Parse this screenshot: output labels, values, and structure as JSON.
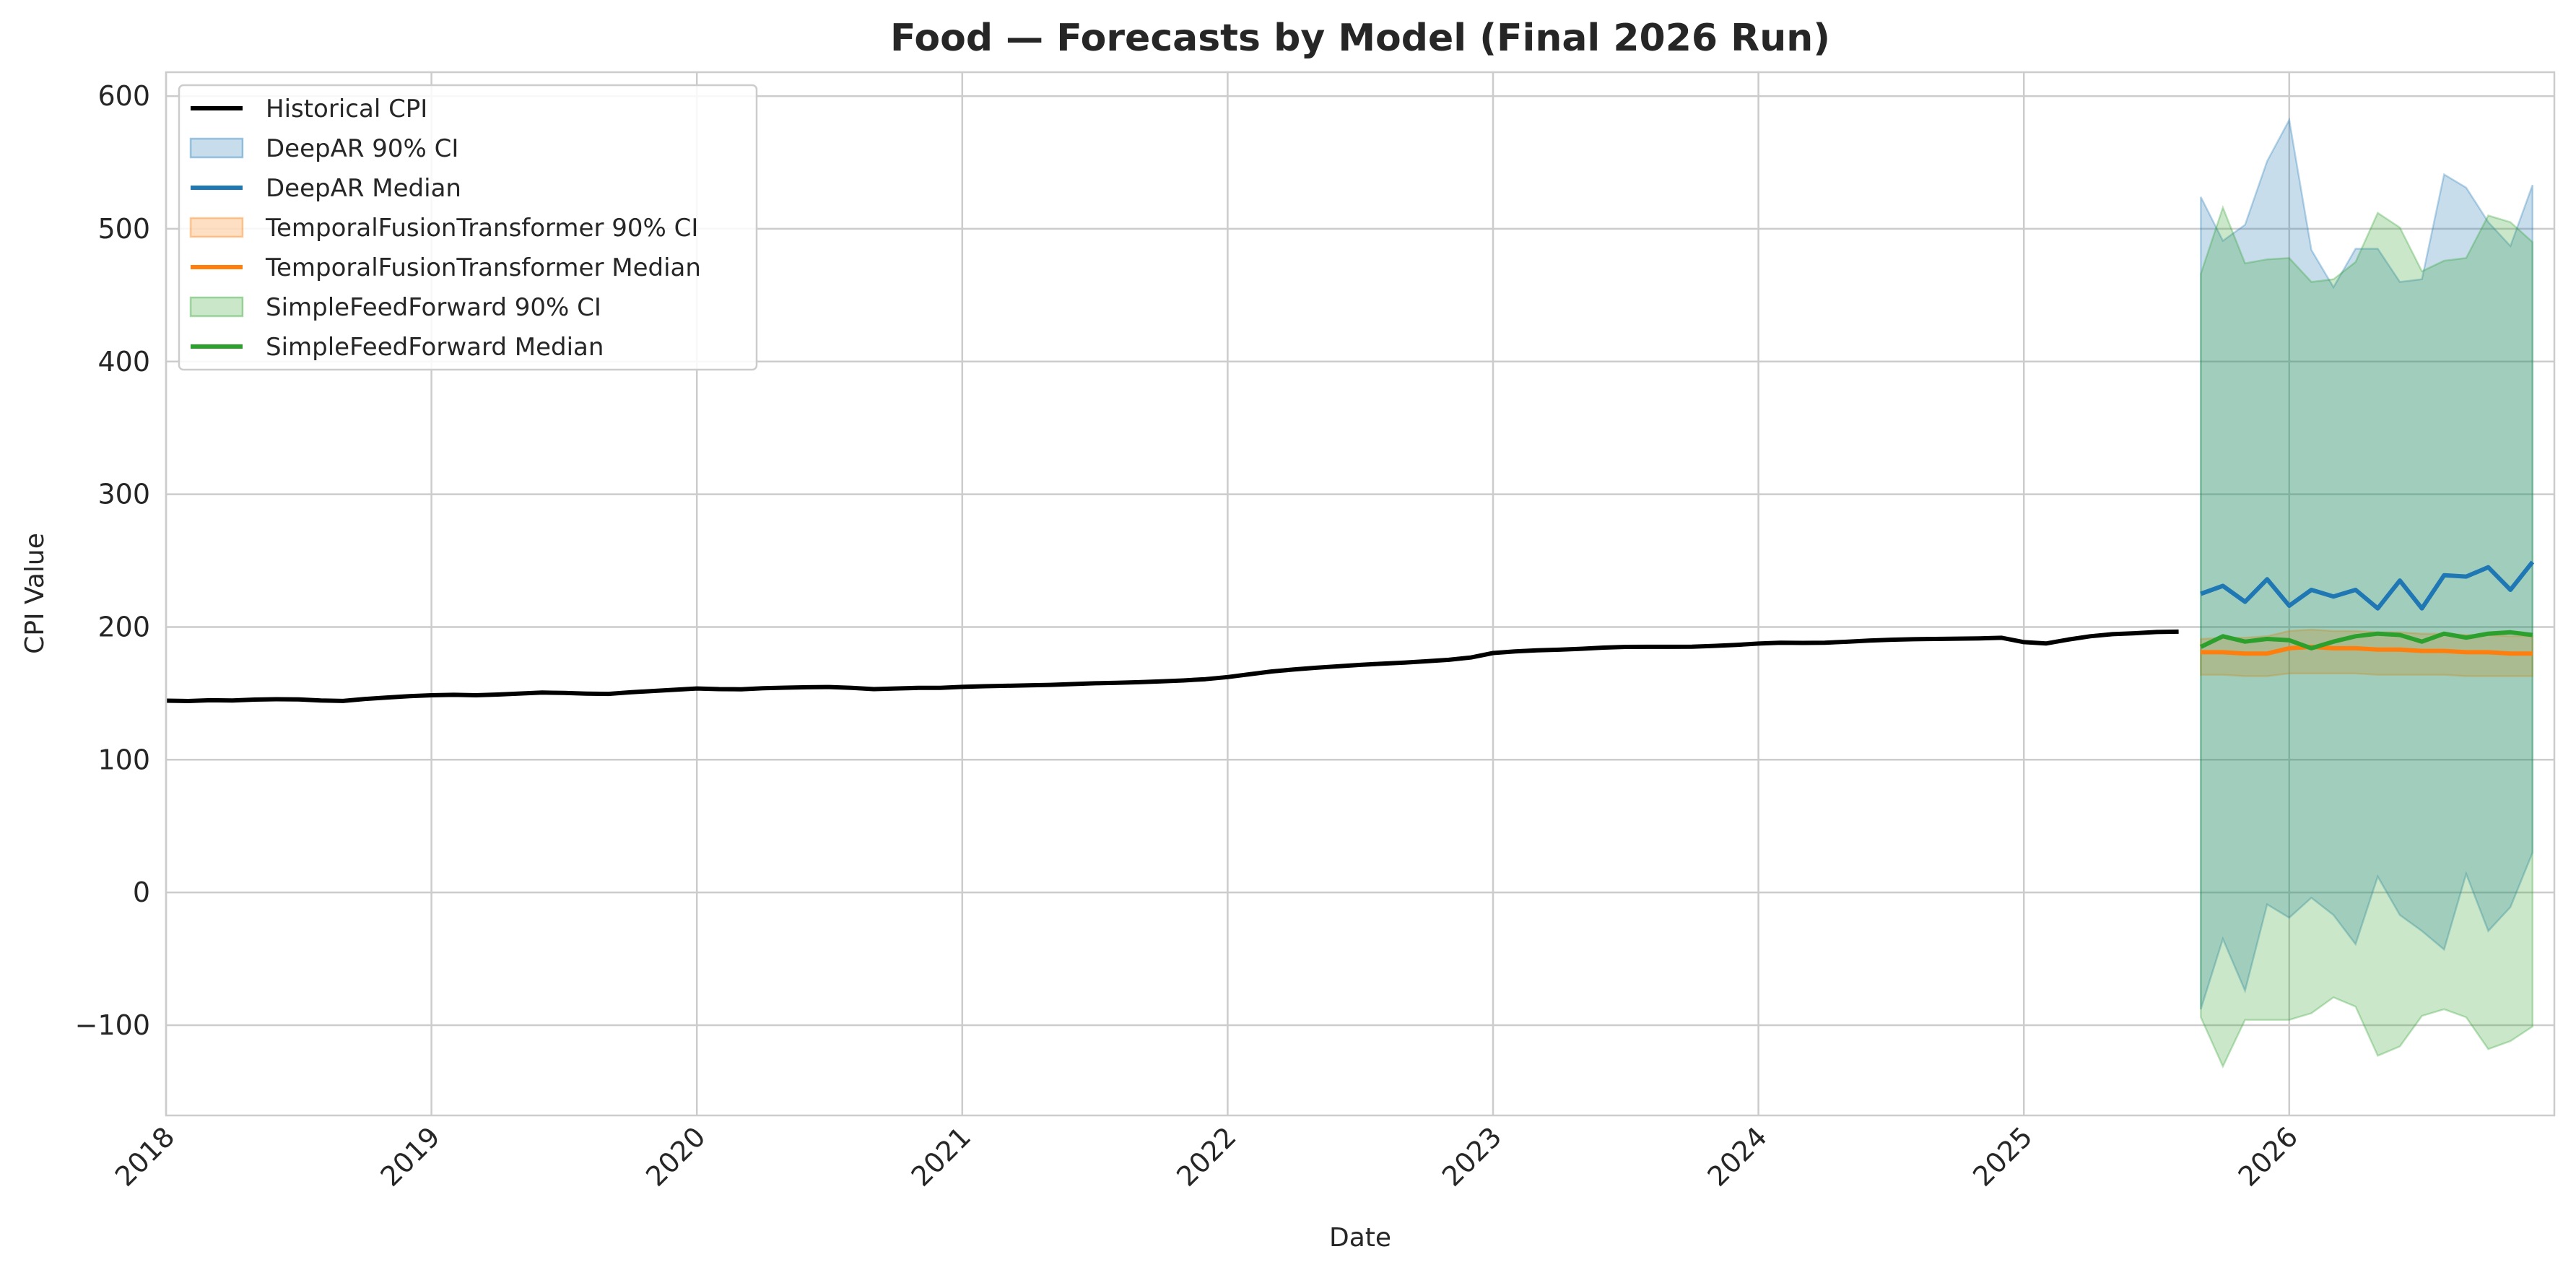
{
  "chart_data": {
    "type": "line",
    "title": "Food — Forecasts by Model (Final 2026 Run)",
    "xlabel": "Date",
    "ylabel": "CPI Value",
    "xlim": [
      "2018-01-01",
      "2026-12-31"
    ],
    "ylim": [
      -168,
      618
    ],
    "x_ticks": [
      "2018",
      "2019",
      "2020",
      "2021",
      "2022",
      "2023",
      "2024",
      "2025",
      "2026"
    ],
    "y_ticks": [
      -100,
      0,
      100,
      200,
      300,
      400,
      500,
      600
    ],
    "y_tick_labels": [
      "−100",
      "0",
      "100",
      "200",
      "300",
      "400",
      "500",
      "600"
    ],
    "grid": true,
    "legend_position": "upper-left",
    "legend": [
      {
        "label": "Historical CPI",
        "kind": "line",
        "color": "#000000"
      },
      {
        "label": "DeepAR 90% CI",
        "kind": "band",
        "color": "#1f77b4"
      },
      {
        "label": "DeepAR Median",
        "kind": "line",
        "color": "#1f77b4"
      },
      {
        "label": "TemporalFusionTransformer 90% CI",
        "kind": "band",
        "color": "#ff7f0e"
      },
      {
        "label": "TemporalFusionTransformer Median",
        "kind": "line",
        "color": "#ff7f0e"
      },
      {
        "label": "SimpleFeedForward 90% CI",
        "kind": "band",
        "color": "#2ca02c"
      },
      {
        "label": "SimpleFeedForward Median",
        "kind": "line",
        "color": "#2ca02c"
      }
    ],
    "historical": {
      "name": "Historical CPI",
      "color": "#000000",
      "start": "2018-01",
      "values": [
        144.5,
        144.2,
        144.8,
        144.6,
        145.3,
        145.6,
        145.4,
        144.6,
        144.3,
        145.8,
        146.9,
        147.9,
        148.6,
        148.9,
        148.6,
        149.1,
        149.9,
        150.6,
        150.3,
        149.8,
        149.6,
        150.8,
        151.8,
        152.7,
        153.7,
        153.2,
        153.1,
        153.9,
        154.3,
        154.6,
        154.8,
        154.1,
        153.2,
        153.7,
        154.1,
        154.1,
        154.9,
        155.4,
        155.7,
        156.1,
        156.4,
        157.0,
        157.6,
        158.0,
        158.4,
        159.1,
        159.7,
        160.7,
        162.3,
        164.4,
        166.5,
        168.0,
        169.3,
        170.4,
        171.5,
        172.4,
        173.2,
        174.2,
        175.3,
        177.0,
        180.4,
        181.6,
        182.4,
        182.9,
        183.6,
        184.5,
        185.0,
        185.1,
        185.1,
        185.2,
        185.8,
        186.5,
        187.5,
        188.1,
        188.0,
        188.2,
        188.9,
        189.8,
        190.4,
        190.8,
        191.0,
        191.2,
        191.4,
        191.9,
        188.6,
        187.6,
        190.5,
        193.0,
        194.6,
        195.3,
        196.2,
        196.5
      ]
    },
    "forecast_months": [
      "2025-09",
      "2025-10",
      "2025-11",
      "2025-12",
      "2026-01",
      "2026-02",
      "2026-03",
      "2026-04",
      "2026-05",
      "2026-06",
      "2026-07",
      "2026-08",
      "2026-09",
      "2026-10",
      "2026-11",
      "2026-12"
    ],
    "series": [
      {
        "name": "DeepAR",
        "color": "#1f77b4",
        "median": [
          225,
          231,
          219,
          236,
          216,
          228,
          223,
          228,
          214,
          235,
          214,
          239,
          238,
          245,
          228,
          249
        ],
        "lower": [
          -88,
          -35,
          -74,
          -9,
          -19,
          -4,
          -17,
          -39,
          12,
          -17,
          -29,
          -43,
          14,
          -29,
          -11,
          30
        ],
        "upper": [
          524,
          491,
          503,
          551,
          582,
          484,
          456,
          485,
          485,
          460,
          462,
          541,
          531,
          505,
          487,
          533
        ]
      },
      {
        "name": "TemporalFusionTransformer",
        "color": "#ff7f0e",
        "median": [
          181,
          181,
          180,
          180,
          184,
          185,
          184,
          184,
          183,
          183,
          182,
          182,
          181,
          181,
          180,
          180
        ],
        "lower": [
          164,
          164,
          163,
          163,
          165,
          165,
          165,
          165,
          164,
          164,
          164,
          164,
          163,
          163,
          163,
          163
        ],
        "upper": [
          191,
          192,
          192,
          193,
          197,
          198,
          197,
          197,
          196,
          196,
          195,
          195,
          194,
          194,
          193,
          193
        ]
      },
      {
        "name": "SimpleFeedForward",
        "color": "#2ca02c",
        "median": [
          185,
          193,
          189,
          191,
          190,
          184,
          189,
          193,
          195,
          194,
          189,
          195,
          192,
          195,
          196,
          194
        ],
        "lower": [
          -94,
          -131,
          -96,
          -96,
          -96,
          -91,
          -79,
          -86,
          -123,
          -116,
          -93,
          -88,
          -94,
          -118,
          -112,
          -101
        ],
        "upper": [
          466,
          516,
          474,
          477,
          478,
          460,
          462,
          475,
          512,
          501,
          468,
          476,
          478,
          510,
          505,
          490
        ]
      }
    ]
  }
}
